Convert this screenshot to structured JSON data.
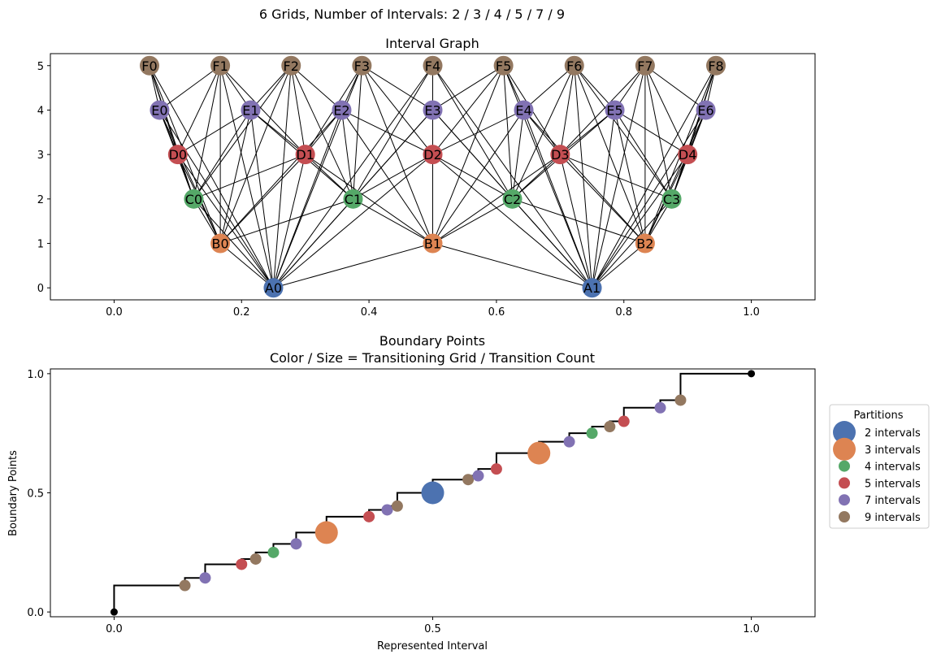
{
  "suptitle": "6 Grids, Number of Intervals: 2 / 3 / 4 / 5 / 7 / 9",
  "colors": {
    "2": "#4c72b0",
    "3": "#dd8452",
    "4": "#55a868",
    "5": "#c44e52",
    "7": "#8172b3",
    "9": "#937860",
    "edge": "#000000",
    "endpoint": "#000000"
  },
  "chart_data": [
    {
      "type": "network",
      "title": "Interval Graph",
      "xlim": [
        -0.1,
        1.1
      ],
      "ylim": [
        -0.27,
        5.27
      ],
      "xticks": [
        "0.0",
        "0.2",
        "0.4",
        "0.6",
        "0.8",
        "1.0"
      ],
      "yticks": [
        "0",
        "1",
        "2",
        "3",
        "4",
        "5"
      ],
      "layers": [
        {
          "prefix": "A",
          "level": 0,
          "n": 2
        },
        {
          "prefix": "B",
          "level": 1,
          "n": 3
        },
        {
          "prefix": "C",
          "level": 2,
          "n": 4
        },
        {
          "prefix": "D",
          "level": 3,
          "n": 5
        },
        {
          "prefix": "E",
          "level": 4,
          "n": 7
        },
        {
          "prefix": "F",
          "level": 5,
          "n": 9
        }
      ],
      "edge_rule": "nodes in different layers are connected when their intervals overlap"
    },
    {
      "type": "step-scatter",
      "title": "Boundary Points",
      "subtitle": "Color / Size = Transitioning Grid / Transition Count",
      "xlabel": "Represented Interval",
      "ylabel": "Boundary Points",
      "xlim": [
        -0.1,
        1.1
      ],
      "ylim": [
        -0.02,
        1.02
      ],
      "xticks": [
        "0.0",
        "0.5",
        "1.0"
      ],
      "yticks": [
        "0.0",
        "0.5",
        "1.0"
      ],
      "endpoints": [
        [
          0,
          0
        ],
        [
          1,
          1
        ]
      ],
      "boundary_points": [
        {
          "value": 0.1111,
          "grid": "9",
          "count": 1
        },
        {
          "value": 0.1429,
          "grid": "7",
          "count": 1
        },
        {
          "value": 0.2,
          "grid": "5",
          "count": 1
        },
        {
          "value": 0.2222,
          "grid": "9",
          "count": 1
        },
        {
          "value": 0.25,
          "grid": "4",
          "count": 1
        },
        {
          "value": 0.2857,
          "grid": "7",
          "count": 1
        },
        {
          "value": 0.3333,
          "grid": "3",
          "count": 2
        },
        {
          "value": 0.4,
          "grid": "5",
          "count": 1
        },
        {
          "value": 0.4286,
          "grid": "7",
          "count": 1
        },
        {
          "value": 0.4444,
          "grid": "9",
          "count": 1
        },
        {
          "value": 0.5,
          "grid": "2",
          "count": 2
        },
        {
          "value": 0.5556,
          "grid": "9",
          "count": 1
        },
        {
          "value": 0.5714,
          "grid": "7",
          "count": 1
        },
        {
          "value": 0.6,
          "grid": "5",
          "count": 1
        },
        {
          "value": 0.6667,
          "grid": "3",
          "count": 2
        },
        {
          "value": 0.7143,
          "grid": "7",
          "count": 1
        },
        {
          "value": 0.75,
          "grid": "4",
          "count": 1
        },
        {
          "value": 0.7778,
          "grid": "9",
          "count": 1
        },
        {
          "value": 0.8,
          "grid": "5",
          "count": 1
        },
        {
          "value": 0.8571,
          "grid": "7",
          "count": 1
        },
        {
          "value": 0.8889,
          "grid": "9",
          "count": 1
        }
      ],
      "legend": {
        "title": "Partitions",
        "placement": "outside-right",
        "entries": [
          {
            "grid": "2",
            "label": "2 intervals",
            "large": true
          },
          {
            "grid": "3",
            "label": "3 intervals",
            "large": true
          },
          {
            "grid": "4",
            "label": "4 intervals",
            "large": false
          },
          {
            "grid": "5",
            "label": "5 intervals",
            "large": false
          },
          {
            "grid": "7",
            "label": "7 intervals",
            "large": false
          },
          {
            "grid": "9",
            "label": "9 intervals",
            "large": false
          }
        ]
      }
    }
  ]
}
